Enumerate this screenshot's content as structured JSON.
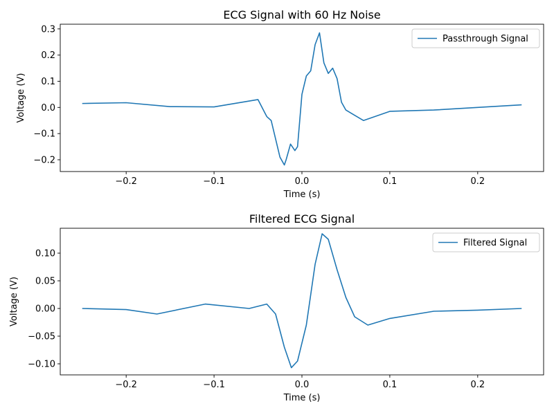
{
  "chart_data": [
    {
      "type": "line",
      "title": "ECG Signal with 60 Hz Noise",
      "xlabel": "Time (s)",
      "ylabel": "Voltage (V)",
      "xlim": [
        -0.275,
        0.275
      ],
      "ylim": [
        -0.245,
        0.318
      ],
      "xticks": [
        -0.2,
        -0.1,
        0.0,
        0.1,
        0.2
      ],
      "xtick_labels": [
        "−0.2",
        "−0.1",
        "0.0",
        "0.1",
        "0.2"
      ],
      "yticks": [
        -0.2,
        -0.1,
        0.0,
        0.1,
        0.2,
        0.3
      ],
      "ytick_labels": [
        "−0.2",
        "−0.1",
        "0.0",
        "0.1",
        "0.2",
        "0.3"
      ],
      "legend": {
        "position": "upper right",
        "color": "#1f77b4"
      },
      "grid": false,
      "series": [
        {
          "name": "Passthrough Signal",
          "color": "#1f77b4",
          "x": [
            -0.25,
            -0.2,
            -0.15,
            -0.1,
            -0.05,
            -0.04,
            -0.035,
            -0.03,
            -0.025,
            -0.02,
            -0.018,
            -0.013,
            -0.008,
            -0.005,
            0.0,
            0.005,
            0.01,
            0.015,
            0.02,
            0.025,
            0.03,
            0.035,
            0.04,
            0.045,
            0.05,
            0.06,
            0.07,
            0.1,
            0.15,
            0.2,
            0.25
          ],
          "y": [
            0.015,
            0.018,
            0.003,
            0.002,
            0.03,
            -0.035,
            -0.05,
            -0.12,
            -0.19,
            -0.22,
            -0.2,
            -0.14,
            -0.165,
            -0.15,
            0.05,
            0.12,
            0.14,
            0.24,
            0.285,
            0.17,
            0.13,
            0.15,
            0.11,
            0.02,
            -0.01,
            -0.03,
            -0.05,
            -0.015,
            -0.01,
            0.0,
            0.01
          ]
        }
      ]
    },
    {
      "type": "line",
      "title": "Filtered ECG Signal",
      "xlabel": "Time (s)",
      "ylabel": "Voltage (V)",
      "xlim": [
        -0.275,
        0.275
      ],
      "ylim": [
        -0.12,
        0.145
      ],
      "xticks": [
        -0.2,
        -0.1,
        0.0,
        0.1,
        0.2
      ],
      "xtick_labels": [
        "−0.2",
        "−0.1",
        "0.0",
        "0.1",
        "0.2"
      ],
      "yticks": [
        -0.1,
        -0.05,
        0.0,
        0.05,
        0.1
      ],
      "ytick_labels": [
        "−0.10",
        "−0.05",
        "0.00",
        "0.05",
        "0.10"
      ],
      "legend": {
        "position": "upper right",
        "color": "#1f77b4"
      },
      "grid": false,
      "series": [
        {
          "name": "Filtered Signal",
          "color": "#1f77b4",
          "x": [
            -0.25,
            -0.2,
            -0.165,
            -0.11,
            -0.06,
            -0.04,
            -0.03,
            -0.02,
            -0.012,
            -0.005,
            0.005,
            0.015,
            0.023,
            0.03,
            0.04,
            0.05,
            0.06,
            0.075,
            0.1,
            0.15,
            0.2,
            0.25
          ],
          "y": [
            0.0,
            -0.002,
            -0.01,
            0.008,
            0.0,
            0.008,
            -0.01,
            -0.07,
            -0.107,
            -0.095,
            -0.03,
            0.08,
            0.135,
            0.125,
            0.07,
            0.02,
            -0.015,
            -0.03,
            -0.018,
            -0.005,
            -0.003,
            0.0
          ]
        }
      ]
    }
  ]
}
